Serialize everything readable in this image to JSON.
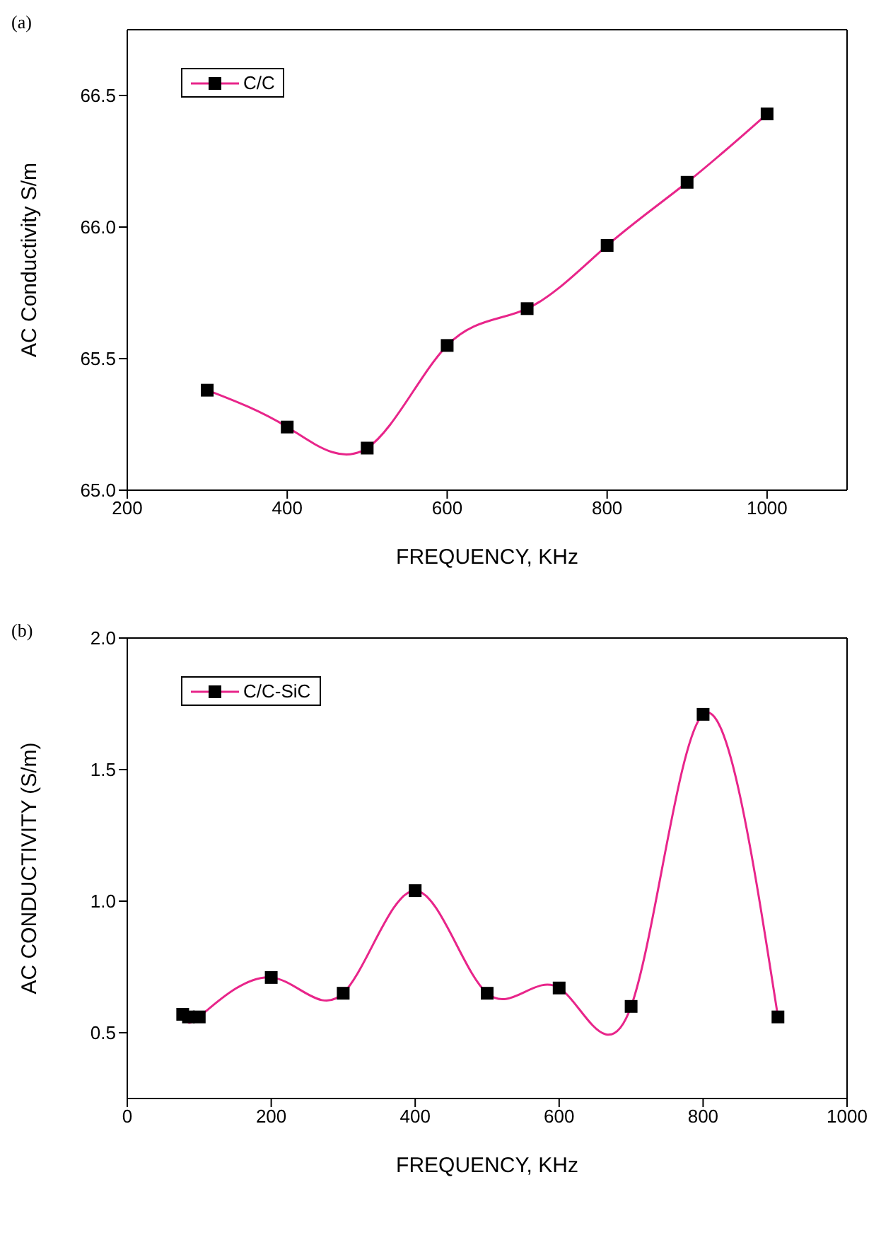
{
  "chart_data": [
    {
      "type": "line",
      "title": "(a)",
      "xlabel": "FREQUENCY, KHz",
      "ylabel": "AC Conductivity S/m",
      "xlim": [
        200,
        1100
      ],
      "xticks": [
        200,
        400,
        600,
        800,
        1000
      ],
      "ylim": [
        65.0,
        66.75
      ],
      "yticks": [
        {
          "value": 65.0,
          "label": "65.0"
        },
        {
          "value": 65.5,
          "label": "65.5"
        },
        {
          "value": 66.0,
          "label": "66.0"
        },
        {
          "value": 66.5,
          "label": "66.5"
        }
      ],
      "legend": "top left",
      "marker": "square",
      "line_style": "solid",
      "series": [
        {
          "name": "C/C",
          "color": "#e8258a",
          "x": [
            300,
            400,
            500,
            600,
            700,
            800,
            900,
            1000
          ],
          "values": [
            65.38,
            65.24,
            65.16,
            65.55,
            65.69,
            65.93,
            66.17,
            66.43
          ]
        }
      ]
    },
    {
      "type": "line",
      "title": "(b)",
      "xlabel": "FREQUENCY, KHz",
      "ylabel": "AC CONDUCTIVITY (S/m)",
      "xlim": [
        0,
        1000
      ],
      "xticks": [
        0,
        200,
        400,
        600,
        800,
        1000
      ],
      "ylim": [
        0.25,
        2.0
      ],
      "yticks": [
        {
          "value": 0.5,
          "label": "0.5"
        },
        {
          "value": 1.0,
          "label": "1.0"
        },
        {
          "value": 1.5,
          "label": "1.5"
        },
        {
          "value": 2.0,
          "label": "2.0"
        }
      ],
      "legend": "top left",
      "marker": "square",
      "line_style": "solid",
      "series": [
        {
          "name": "C/C-SiC",
          "color": "#e8258a",
          "x": [
            77,
            85,
            100,
            200,
            300,
            400,
            500,
            600,
            700,
            800,
            904
          ],
          "values": [
            0.57,
            0.56,
            0.56,
            0.71,
            0.65,
            1.04,
            0.65,
            0.67,
            0.6,
            1.71,
            0.56
          ]
        }
      ]
    }
  ]
}
